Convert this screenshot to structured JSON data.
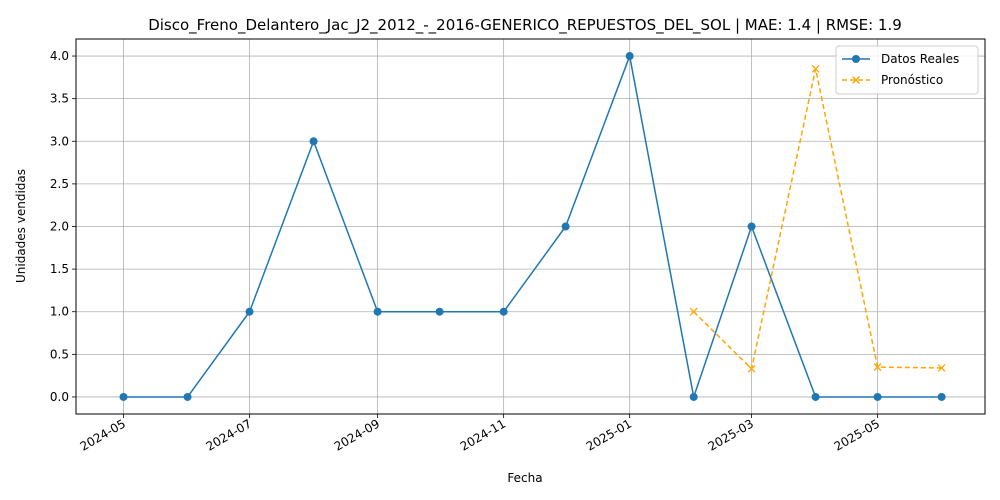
{
  "chart_data": {
    "type": "line",
    "title": "Disco_Freno_Delantero_Jac_J2_2012_-_2016-GENERICO_REPUESTOS_DEL_SOL | MAE: 1.4 | RMSE: 1.9",
    "xlabel": "Fecha",
    "ylabel": "Unidades vendidas",
    "ylim": [
      -0.2,
      4.2
    ],
    "xlim": [
      "2024-04-08",
      "2025-06-22"
    ],
    "grid": true,
    "legend_position": "top-right",
    "x_ticks": [
      "2024-05",
      "2024-07",
      "2024-09",
      "2024-11",
      "2025-01",
      "2025-03",
      "2025-05"
    ],
    "y_ticks": [
      "0.0",
      "0.5",
      "1.0",
      "1.5",
      "2.0",
      "2.5",
      "3.0",
      "3.5",
      "4.0"
    ],
    "series": [
      {
        "name": "Datos Reales",
        "color": "#1f77b4",
        "style": "solid",
        "marker": "circle",
        "x": [
          "2024-05-01",
          "2024-06-01",
          "2024-07-01",
          "2024-08-01",
          "2024-09-01",
          "2024-10-01",
          "2024-11-01",
          "2024-12-01",
          "2025-01-01",
          "2025-02-01",
          "2025-03-01",
          "2025-04-01",
          "2025-05-01",
          "2025-06-01"
        ],
        "values": [
          0,
          0,
          1,
          3,
          1,
          1,
          1,
          2,
          4,
          0,
          2,
          0,
          0,
          0
        ]
      },
      {
        "name": "Pronóstico",
        "color": "#ffa500",
        "style": "dashed",
        "marker": "x",
        "x": [
          "2025-02-01",
          "2025-03-01",
          "2025-04-01",
          "2025-05-01",
          "2025-06-01"
        ],
        "values": [
          1.0,
          0.33,
          3.85,
          0.35,
          0.34
        ]
      }
    ]
  }
}
